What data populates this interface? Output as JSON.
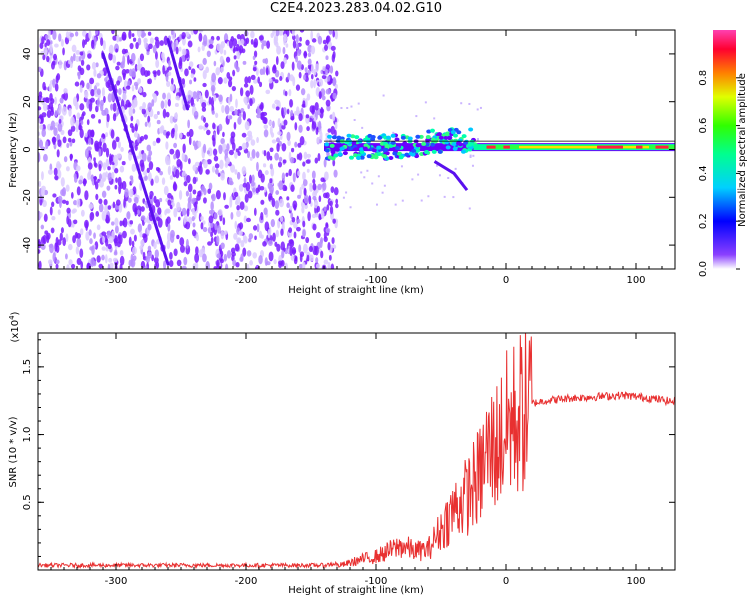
{
  "title": "C2E4.2023.283.04.02.G10",
  "colors": {
    "spectrum": "#7a1cff",
    "snr_line": "#e83030",
    "colorbar": [
      "#6a00ff",
      "#0000ff",
      "#00c8ff",
      "#00ff80",
      "#40ff00",
      "#ffff00",
      "#ff8000",
      "#ff0040",
      "#ff40a0"
    ]
  },
  "chart_data": [
    {
      "type": "heatmap",
      "name": "spectrogram",
      "xlabel": "Height of straight line (km)",
      "ylabel": "Frequency (Hz)",
      "xlim": [
        -360,
        130
      ],
      "ylim": [
        -50,
        50
      ],
      "x_ticks": [
        -300,
        -200,
        -100,
        0,
        100
      ],
      "y_ticks": [
        -40,
        -20,
        0,
        20,
        40
      ],
      "colorbar": {
        "label": "Normalized spectral amplitude",
        "ticks": [
          "0.0",
          "0.2",
          "0.4",
          "0.6",
          "0.8"
        ],
        "range": [
          0,
          1
        ]
      },
      "features": {
        "noise_region_x": [
          -360,
          -130
        ],
        "carrier_line_x": [
          -140,
          130
        ],
        "carrier_freq_hz": 1,
        "diagonal_line_1": [
          [
            -310,
            40
          ],
          [
            -275,
            -22
          ],
          [
            -260,
            -48
          ]
        ],
        "diagonal_line_2": [
          [
            -260,
            46
          ],
          [
            -245,
            17
          ]
        ]
      }
    },
    {
      "type": "line",
      "name": "snr",
      "xlabel": "Height of straight line (km)",
      "ylabel": "SNR (10 * v/v)",
      "multiplier_label": "(x10",
      "multiplier_exp": "4",
      "xlim": [
        -360,
        130
      ],
      "ylim": [
        0,
        1.75
      ],
      "x_ticks": [
        -300,
        -200,
        -100,
        0,
        100
      ],
      "y_ticks": [
        0.5,
        1.0,
        1.5
      ],
      "y_tick_labels": [
        "0.5",
        "1.0",
        "1.5"
      ],
      "series": [
        {
          "x": [
            -360,
            -300,
            -200,
            -140,
            -125,
            -110,
            -100,
            -90,
            -80,
            -70,
            -60,
            -50,
            -40,
            -30,
            -20,
            -15,
            -10,
            -5,
            0,
            10,
            20,
            30,
            50,
            70,
            90,
            110,
            130
          ],
          "y": [
            0.02,
            0.02,
            0.02,
            0.02,
            0.04,
            0.08,
            0.1,
            0.14,
            0.18,
            0.14,
            0.15,
            0.3,
            0.45,
            0.55,
            0.7,
            0.85,
            0.9,
            0.95,
            1.05,
            1.15,
            1.23,
            1.25,
            1.27,
            1.28,
            1.29,
            1.27,
            1.24
          ]
        }
      ]
    }
  ]
}
